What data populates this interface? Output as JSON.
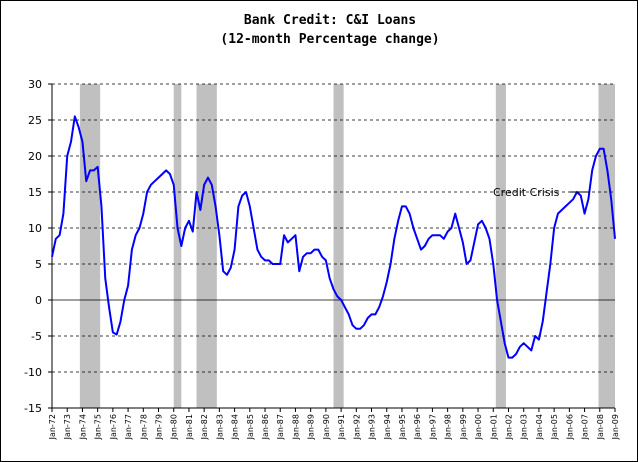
{
  "chart_data": {
    "type": "line",
    "title": "Bank Credit: C&I Loans",
    "subtitle": "(12-month Percentage change)",
    "x": [
      "1972-01",
      "1972-04",
      "1972-07",
      "1972-10",
      "1973-01",
      "1973-04",
      "1973-07",
      "1973-10",
      "1974-01",
      "1974-04",
      "1974-07",
      "1974-10",
      "1975-01",
      "1975-04",
      "1975-07",
      "1975-10",
      "1976-01",
      "1976-04",
      "1976-07",
      "1976-10",
      "1977-01",
      "1977-04",
      "1977-07",
      "1977-10",
      "1978-01",
      "1978-04",
      "1978-07",
      "1978-10",
      "1979-01",
      "1979-04",
      "1979-07",
      "1979-10",
      "1980-01",
      "1980-04",
      "1980-07",
      "1980-10",
      "1981-01",
      "1981-04",
      "1981-07",
      "1981-10",
      "1982-01",
      "1982-04",
      "1982-07",
      "1982-10",
      "1983-01",
      "1983-04",
      "1983-07",
      "1983-10",
      "1984-01",
      "1984-04",
      "1984-07",
      "1984-10",
      "1985-01",
      "1985-04",
      "1985-07",
      "1985-10",
      "1986-01",
      "1986-04",
      "1986-07",
      "1986-10",
      "1987-01",
      "1987-04",
      "1987-07",
      "1987-10",
      "1988-01",
      "1988-04",
      "1988-07",
      "1988-10",
      "1989-01",
      "1989-04",
      "1989-07",
      "1989-10",
      "1990-01",
      "1990-04",
      "1990-07",
      "1990-10",
      "1991-01",
      "1991-04",
      "1991-07",
      "1991-10",
      "1992-01",
      "1992-04",
      "1992-07",
      "1992-10",
      "1993-01",
      "1993-04",
      "1993-07",
      "1993-10",
      "1994-01",
      "1994-04",
      "1994-07",
      "1994-10",
      "1995-01",
      "1995-04",
      "1995-07",
      "1995-10",
      "1996-01",
      "1996-04",
      "1996-07",
      "1996-10",
      "1997-01",
      "1997-04",
      "1997-07",
      "1997-10",
      "1998-01",
      "1998-04",
      "1998-07",
      "1998-10",
      "1999-01",
      "1999-04",
      "1999-07",
      "1999-10",
      "2000-01",
      "2000-04",
      "2000-07",
      "2000-10",
      "2001-01",
      "2001-04",
      "2001-07",
      "2001-10",
      "2002-01",
      "2002-04",
      "2002-07",
      "2002-10",
      "2003-01",
      "2003-04",
      "2003-07",
      "2003-10",
      "2004-01",
      "2004-04",
      "2004-07",
      "2004-10",
      "2005-01",
      "2005-04",
      "2005-07",
      "2005-10",
      "2006-01",
      "2006-04",
      "2006-07",
      "2006-10",
      "2007-01",
      "2007-04",
      "2007-07",
      "2007-10",
      "2008-01",
      "2008-04",
      "2008-07",
      "2008-10",
      "2009-01"
    ],
    "series": [
      {
        "color": "#0000ff",
        "values": [
          6,
          8.5,
          9,
          12,
          20,
          22,
          25.5,
          24,
          22,
          16.5,
          18,
          18,
          18.5,
          13,
          3,
          -1,
          -4.5,
          -4.8,
          -3,
          0,
          2,
          7,
          9,
          10,
          12,
          15,
          16,
          16.5,
          17,
          17.5,
          18,
          17.5,
          16,
          10,
          7.5,
          10,
          11,
          9.5,
          15,
          12.5,
          16,
          17,
          16,
          13,
          9,
          4,
          3.5,
          4.5,
          7,
          13,
          14.5,
          15,
          13,
          10,
          7,
          6,
          5.5,
          5.5,
          5,
          5,
          5,
          9,
          8,
          8.5,
          9,
          4,
          6,
          6.5,
          6.5,
          7,
          7,
          6,
          5.5,
          3,
          1.5,
          0.5,
          0,
          -1,
          -2,
          -3.5,
          -4,
          -4,
          -3.5,
          -2.5,
          -2,
          -2,
          -1,
          0.5,
          2.5,
          5,
          8.5,
          11,
          13,
          13,
          12,
          10,
          8.5,
          7,
          7.5,
          8.5,
          9,
          9,
          9,
          8.5,
          9.5,
          10,
          12,
          10,
          8,
          5,
          5.5,
          8,
          10.5,
          11,
          10,
          8.5,
          5,
          0,
          -3,
          -6,
          -8,
          -8,
          -7.5,
          -6.5,
          -6,
          -6.5,
          -7,
          -5,
          -5.5,
          -3,
          1,
          5,
          10,
          12,
          12.5,
          13,
          13.5,
          14,
          15,
          14.5,
          12,
          14,
          18,
          20,
          21,
          21,
          18,
          14,
          8.5
        ]
      }
    ],
    "ylim": [
      -15,
      30
    ],
    "yticks": [
      -15,
      -10,
      -5,
      0,
      5,
      10,
      15,
      20,
      25,
      30
    ],
    "xlim": [
      "1972-01",
      "2009-01"
    ],
    "xticks": [
      {
        "value": "1972-01",
        "label": "Jan-72"
      },
      {
        "value": "1973-01",
        "label": "Jan-73"
      },
      {
        "value": "1974-01",
        "label": "Jan-74"
      },
      {
        "value": "1975-01",
        "label": "Jan-75"
      },
      {
        "value": "1976-01",
        "label": "Jan-76"
      },
      {
        "value": "1977-01",
        "label": "Jan-77"
      },
      {
        "value": "1978-01",
        "label": "Jan-78"
      },
      {
        "value": "1979-01",
        "label": "Jan-79"
      },
      {
        "value": "1980-01",
        "label": "Jan-80"
      },
      {
        "value": "1981-01",
        "label": "Jan-81"
      },
      {
        "value": "1982-01",
        "label": "Jan-82"
      },
      {
        "value": "1983-01",
        "label": "Jan-83"
      },
      {
        "value": "1984-01",
        "label": "Jan-84"
      },
      {
        "value": "1985-01",
        "label": "Jan-85"
      },
      {
        "value": "1986-01",
        "label": "Jan-86"
      },
      {
        "value": "1987-01",
        "label": "Jan-87"
      },
      {
        "value": "1988-01",
        "label": "Jan-88"
      },
      {
        "value": "1989-01",
        "label": "Jan-89"
      },
      {
        "value": "1990-01",
        "label": "Jan-90"
      },
      {
        "value": "1991-01",
        "label": "Jan-91"
      },
      {
        "value": "1992-01",
        "label": "Jan-92"
      },
      {
        "value": "1993-01",
        "label": "Jan-93"
      },
      {
        "value": "1994-01",
        "label": "Jan-94"
      },
      {
        "value": "1995-01",
        "label": "Jan-95"
      },
      {
        "value": "1996-01",
        "label": "Jan-96"
      },
      {
        "value": "1997-01",
        "label": "Jan-97"
      },
      {
        "value": "1998-01",
        "label": "Jan-98"
      },
      {
        "value": "1999-01",
        "label": "Jan-99"
      },
      {
        "value": "2000-01",
        "label": "Jan-00"
      },
      {
        "value": "2001-01",
        "label": "Jan-01"
      },
      {
        "value": "2002-01",
        "label": "Jan-02"
      },
      {
        "value": "2003-01",
        "label": "Jan-03"
      },
      {
        "value": "2004-01",
        "label": "Jan-04"
      },
      {
        "value": "2005-01",
        "label": "Jan-05"
      },
      {
        "value": "2006-01",
        "label": "Jan-06"
      },
      {
        "value": "2007-01",
        "label": "Jan-07"
      },
      {
        "value": "2008-01",
        "label": "Jan-08"
      },
      {
        "value": "2009-01",
        "label": "Jan-09"
      }
    ],
    "shaded_regions": [
      {
        "start": "1973-11",
        "end": "1975-03"
      },
      {
        "start": "1980-01",
        "end": "1980-07"
      },
      {
        "start": "1981-07",
        "end": "1982-11"
      },
      {
        "start": "1990-07",
        "end": "1991-03"
      },
      {
        "start": "2001-03",
        "end": "2001-11"
      },
      {
        "start": "2007-12",
        "end": "2009-01"
      }
    ],
    "shade_color": "#c0c0c0",
    "annotation": "Credit Crisis",
    "grid": true
  }
}
